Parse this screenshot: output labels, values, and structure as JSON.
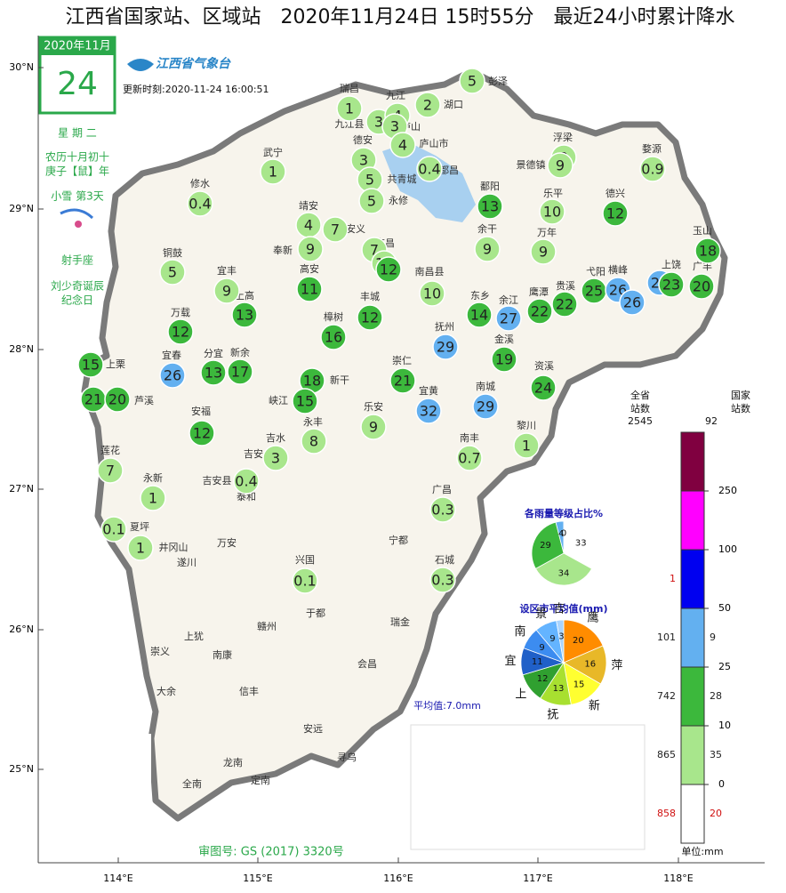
{
  "header": {
    "title": "江西省国家站、区域站　2020年11月24日 15时55分　最近24小时累计降水"
  },
  "calendar": {
    "month": "2020年11月",
    "day": "24",
    "weekday": "星 期 二",
    "lunar": "农历十月初十",
    "year": "庚子【鼠】年",
    "term": "小雪 第3天",
    "sign": "射手座",
    "event1": "刘少奇诞辰",
    "event2": "纪念日"
  },
  "logo": {
    "name": "江西省气象台",
    "update": "更新时刻:2020-11-24 16:00:51"
  },
  "map": {
    "lat_labels": [
      "30°N",
      "29°N",
      "28°N",
      "27°N",
      "26°N",
      "25°N"
    ],
    "lon_labels": [
      "114°E",
      "115°E",
      "116°E",
      "117°E",
      "118°E"
    ],
    "places": [
      "彭泽",
      "湖口",
      "瑞昌",
      "九江县",
      "九江",
      "庐山",
      "德安",
      "庐山市",
      "都昌",
      "武宁",
      "共青城",
      "永修",
      "修水",
      "浮梁",
      "婺源",
      "景德镇",
      "鄱阳",
      "乐平",
      "德兴",
      "靖安",
      "安义",
      "奉新",
      "南昌",
      "南昌县",
      "余干",
      "万年",
      "玉山",
      "广丰",
      "上饶",
      "横峰",
      "弋阳",
      "铜鼓",
      "宜丰",
      "高安",
      "上高",
      "丰城",
      "东乡",
      "余江",
      "鹰潭",
      "贵溪",
      "万载",
      "樟树",
      "抚州",
      "金溪",
      "宜春",
      "分宜",
      "新余",
      "新干",
      "崇仁",
      "资溪",
      "上栗",
      "芦溪",
      "峡江",
      "宜黄",
      "南城",
      "乐安",
      "安福",
      "永丰",
      "黎川",
      "吉水",
      "南丰",
      "莲花",
      "吉安县",
      "吉安",
      "泰和",
      "永新",
      "广昌",
      "夏坪",
      "井冈山",
      "遂川",
      "万安",
      "宁都",
      "兴国",
      "石城",
      "于都",
      "瑞金",
      "赣州",
      "上犹",
      "崇义",
      "南康",
      "会昌",
      "大余",
      "信丰",
      "安远",
      "寻乌",
      "龙南",
      "全南",
      "定南"
    ],
    "stations": [
      5,
      2,
      1,
      3,
      4,
      3,
      4,
      3,
      0.4,
      1,
      5,
      5,
      0.4,
      9,
      9,
      0.9,
      13,
      10,
      12,
      4,
      7,
      9,
      7,
      10,
      12,
      9,
      9,
      18,
      5,
      9,
      11,
      10,
      22,
      22,
      25,
      26,
      26,
      26,
      23,
      20,
      13,
      12,
      14,
      27,
      12,
      16,
      29,
      19,
      15,
      26,
      13,
      17,
      18,
      21,
      24,
      21,
      20,
      15,
      32,
      29,
      9,
      12,
      8,
      1,
      3,
      0.7,
      7,
      0.4,
      1,
      0.3,
      0.1,
      1,
      0.1,
      0.3
    ],
    "approval": "审图号: GS (2017) 3320号",
    "average": "平均值:7.0mm"
  },
  "pie_levels": {
    "title": "各雨量等级占比%",
    "values": [
      33,
      34,
      29,
      4,
      0
    ]
  },
  "pie_cities": {
    "title": "设区市平均值(mm)",
    "labels": [
      "鹰",
      "萍",
      "新",
      "抚",
      "上",
      "宜",
      "南",
      "景",
      "吉"
    ],
    "values": [
      20,
      16,
      15,
      13,
      12,
      11,
      9,
      9,
      3
    ],
    "colors": [
      "#ff8c00",
      "#e8b828",
      "#ffff30",
      "#a8e030",
      "#30a030",
      "#2060c8",
      "#3c8cf0",
      "#64b4ff",
      "#a8d4ff"
    ]
  },
  "legend": {
    "left_header1": "全省",
    "left_header2": "站数",
    "left_total": "2545",
    "right_header1": "国家",
    "right_header2": "站数",
    "right_total": "92",
    "levels": [
      0,
      10,
      25,
      50,
      100,
      250
    ],
    "colors": [
      "#ffffff",
      "#a8e68c",
      "#3cb83c",
      "#63b0f0",
      "#0000f0",
      "#ff00ff",
      "#800040"
    ],
    "province_counts": [
      858,
      865,
      742,
      101,
      1
    ],
    "national_counts": [
      20,
      35,
      28,
      9
    ],
    "unit": "单位:mm"
  }
}
